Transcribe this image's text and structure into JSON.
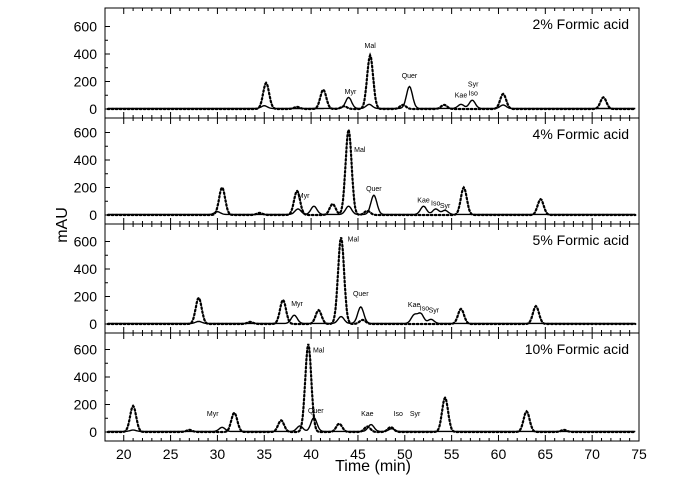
{
  "chart_data": {
    "type": "line",
    "xlabel": "Time (min)",
    "ylabel": "mAU",
    "xlim": [
      18,
      75
    ],
    "ylim": [
      -20,
      650
    ],
    "x_ticks": [
      "20",
      "25",
      "30",
      "35",
      "40",
      "45",
      "50",
      "55",
      "60",
      "65",
      "70",
      "75"
    ],
    "y_ticks": [
      "0",
      "200",
      "400",
      "600"
    ],
    "panels": [
      {
        "title": "2% Formic acid",
        "dotted": [
          [
            35.2,
            190
          ],
          [
            41.3,
            140
          ],
          [
            46.3,
            390
          ],
          [
            49.8,
            30
          ],
          [
            54.2,
            30
          ],
          [
            60.5,
            110
          ],
          [
            71.2,
            85
          ],
          [
            38.5,
            15
          ],
          [
            43.5,
            20
          ]
        ],
        "solid": [
          [
            35.0,
            20
          ],
          [
            44.0,
            80
          ],
          [
            46.2,
            30
          ],
          [
            50.5,
            160
          ],
          [
            56.0,
            30
          ],
          [
            57.2,
            60
          ],
          [
            60.5,
            25
          ]
        ],
        "labels": [
          {
            "text": "Mal",
            "x": 46.3,
            "y": 445
          },
          {
            "text": "Myr",
            "x": 44.2,
            "y": 110
          },
          {
            "text": "Quer",
            "x": 50.5,
            "y": 225
          },
          {
            "text": "Kae",
            "x": 56.0,
            "y": 85
          },
          {
            "text": "Syr",
            "x": 57.3,
            "y": 165
          },
          {
            "text": "Iso",
            "x": 57.3,
            "y": 100
          }
        ]
      },
      {
        "title": "4% Formic acid",
        "dotted": [
          [
            30.5,
            200
          ],
          [
            38.5,
            175
          ],
          [
            42.3,
            80
          ],
          [
            44.0,
            620
          ],
          [
            56.3,
            200
          ],
          [
            64.5,
            115
          ],
          [
            34.5,
            15
          ],
          [
            46.0,
            30
          ]
        ],
        "solid": [
          [
            30.0,
            20
          ],
          [
            38.6,
            40
          ],
          [
            40.3,
            60
          ],
          [
            44.0,
            60
          ],
          [
            46.7,
            140
          ],
          [
            52.0,
            60
          ],
          [
            53.3,
            40
          ],
          [
            54.3,
            30
          ]
        ],
        "labels": [
          {
            "text": "Mal",
            "x": 45.2,
            "y": 460
          },
          {
            "text": "Myr",
            "x": 39.2,
            "y": 125
          },
          {
            "text": "Quer",
            "x": 46.7,
            "y": 175
          },
          {
            "text": "Kae",
            "x": 52.0,
            "y": 90
          },
          {
            "text": "Iso",
            "x": 53.3,
            "y": 70
          },
          {
            "text": "Syr",
            "x": 54.3,
            "y": 50
          }
        ]
      },
      {
        "title": "5% Formic acid",
        "dotted": [
          [
            28.0,
            190
          ],
          [
            37.0,
            175
          ],
          [
            40.8,
            100
          ],
          [
            43.2,
            630
          ],
          [
            56.0,
            110
          ],
          [
            64.0,
            130
          ],
          [
            33.5,
            15
          ],
          [
            45.5,
            30
          ]
        ],
        "solid": [
          [
            28.0,
            15
          ],
          [
            38.2,
            60
          ],
          [
            43.2,
            50
          ],
          [
            45.3,
            120
          ],
          [
            51.0,
            60
          ],
          [
            51.7,
            70
          ],
          [
            52.8,
            30
          ]
        ],
        "labels": [
          {
            "text": "Mal",
            "x": 44.5,
            "y": 600
          },
          {
            "text": "Myr",
            "x": 38.5,
            "y": 130
          },
          {
            "text": "Quer",
            "x": 45.3,
            "y": 205
          },
          {
            "text": "Kae",
            "x": 51.0,
            "y": 125
          },
          {
            "text": "Iso",
            "x": 52.1,
            "y": 100
          },
          {
            "text": "Syr",
            "x": 53.1,
            "y": 85
          }
        ]
      },
      {
        "title": "10% Formic acid",
        "dotted": [
          [
            21.0,
            190
          ],
          [
            31.8,
            140
          ],
          [
            36.8,
            85
          ],
          [
            39.7,
            640
          ],
          [
            43.0,
            60
          ],
          [
            46.0,
            40
          ],
          [
            54.3,
            250
          ],
          [
            63.0,
            150
          ],
          [
            48.5,
            35
          ],
          [
            27.0,
            15
          ],
          [
            67.0,
            15
          ]
        ],
        "solid": [
          [
            21.0,
            10
          ],
          [
            30.5,
            30
          ],
          [
            38.8,
            40
          ],
          [
            40.3,
            100
          ],
          [
            46.4,
            50
          ],
          [
            48.6,
            20
          ]
        ],
        "labels": [
          {
            "text": "Mal",
            "x": 40.8,
            "y": 580
          },
          {
            "text": "Myr",
            "x": 29.5,
            "y": 115
          },
          {
            "text": "Quer",
            "x": 40.5,
            "y": 140
          },
          {
            "text": "Kae",
            "x": 46.0,
            "y": 115
          },
          {
            "text": "Iso",
            "x": 49.3,
            "y": 115
          },
          {
            "text": "Syr",
            "x": 51.1,
            "y": 115
          }
        ]
      }
    ]
  }
}
